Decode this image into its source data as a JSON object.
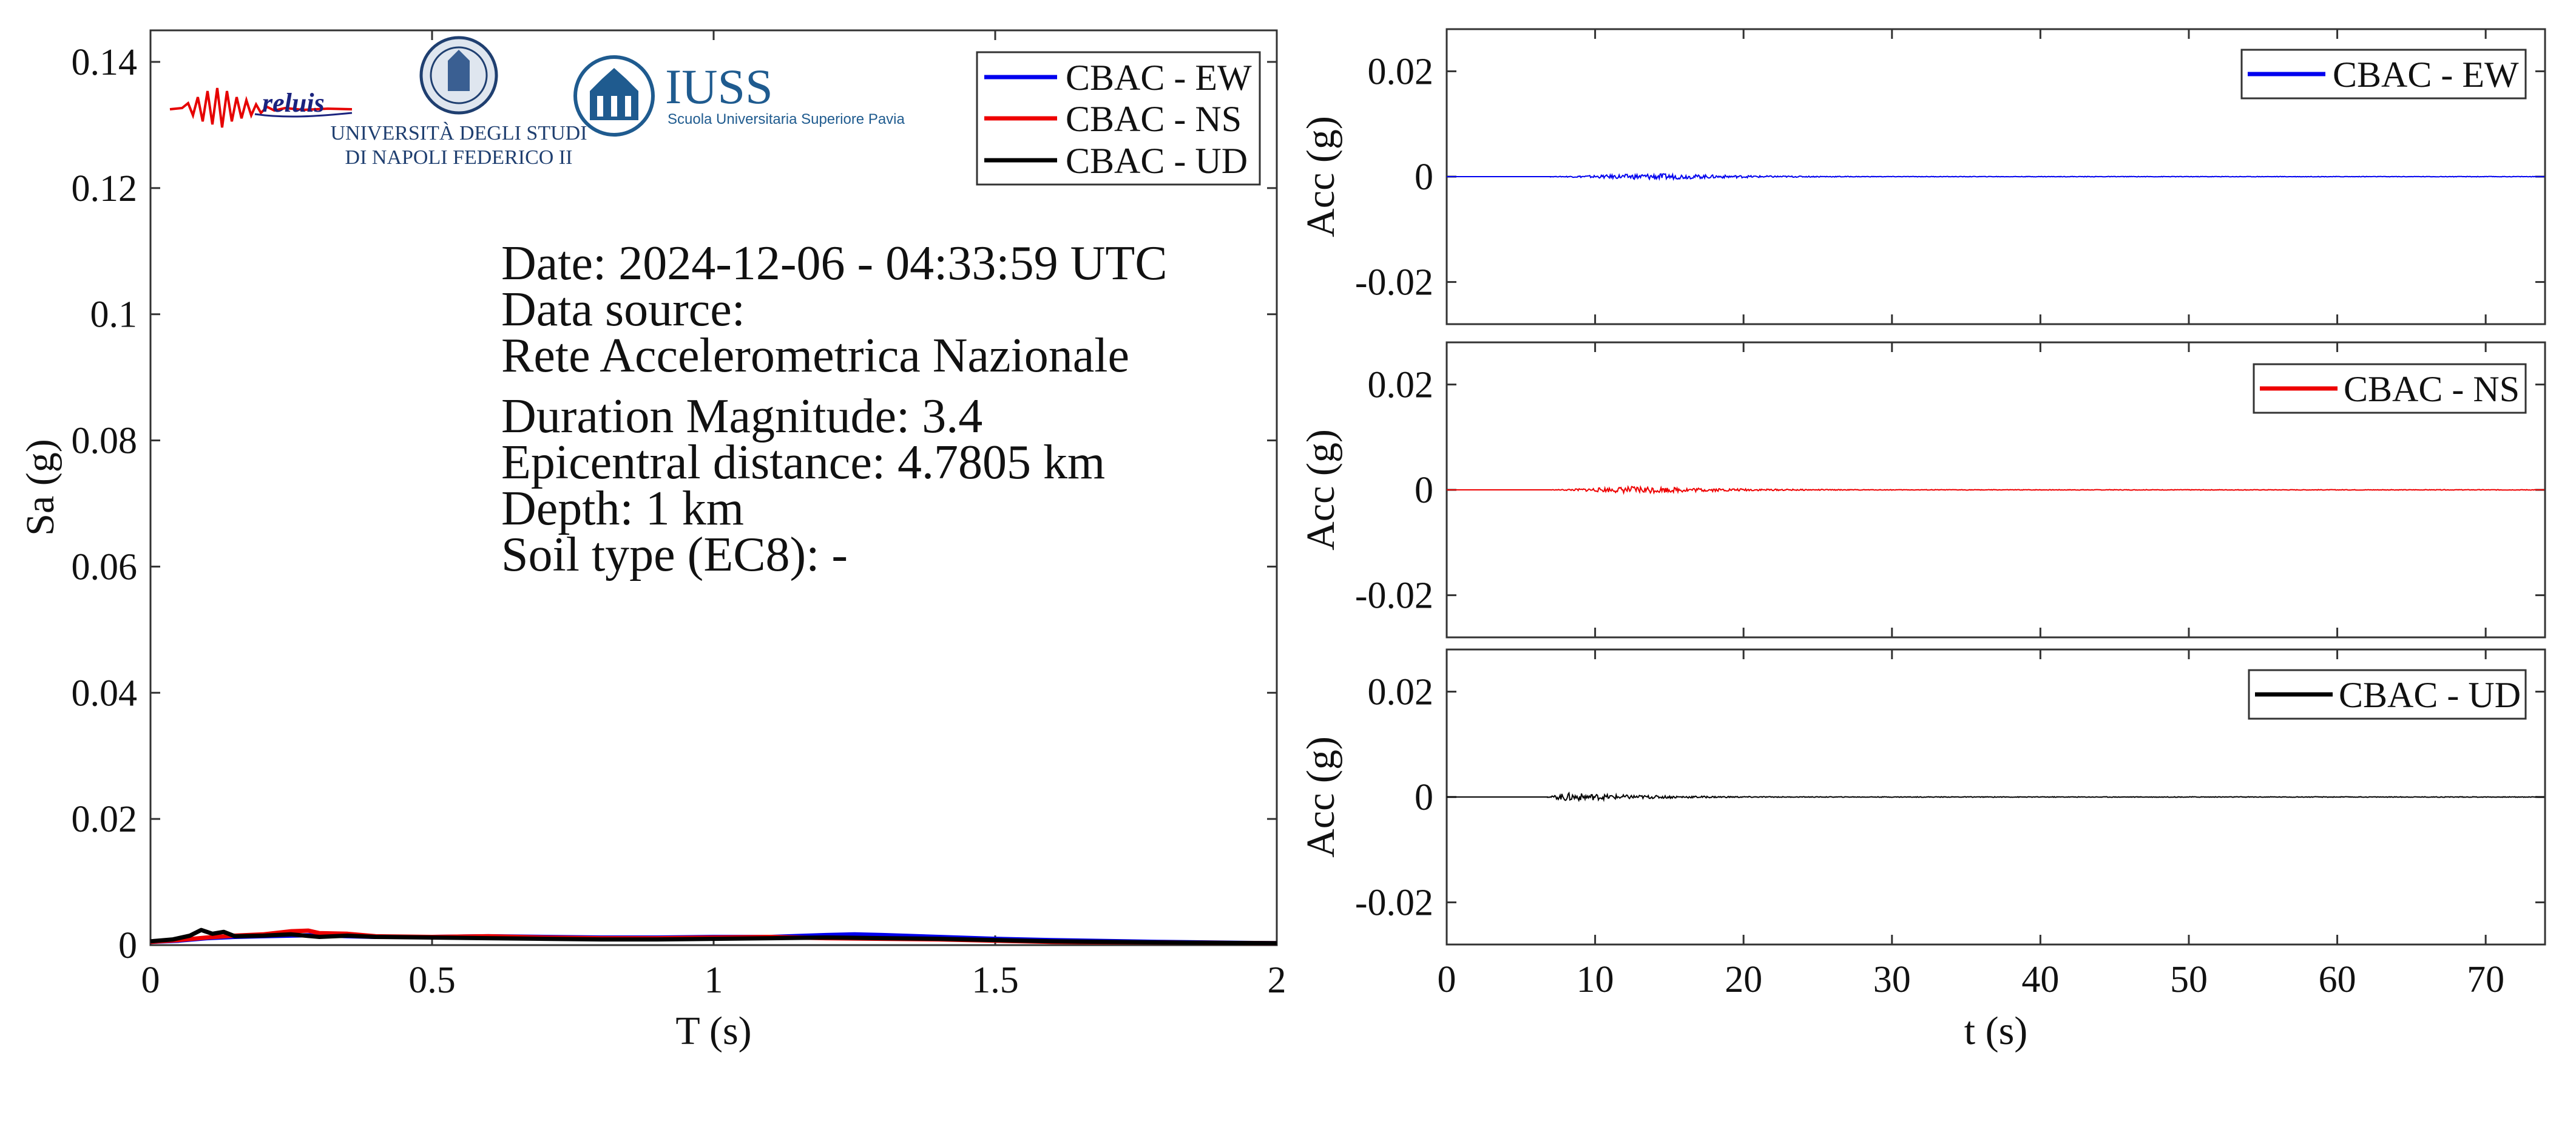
{
  "chart_data": [
    {
      "type": "line",
      "xlabel": "T (s)",
      "ylabel": "Sa (g)",
      "xlim": [
        0,
        2
      ],
      "ylim": [
        0,
        0.145
      ],
      "xticks": [
        0,
        0.5,
        1,
        1.5,
        2
      ],
      "xtick_labels": [
        "0",
        "0.5",
        "1",
        "1.5",
        "2"
      ],
      "yticks": [
        0,
        0.02,
        0.04,
        0.06,
        0.08,
        0.1,
        0.12,
        0.14
      ],
      "ytick_labels": [
        "0",
        "0.02",
        "0.04",
        "0.06",
        "0.08",
        "0.1",
        "0.12",
        "0.14"
      ],
      "legend_position": "top-right",
      "series": [
        {
          "name": "CBAC - EW",
          "color": "#0000ee",
          "x": [
            0,
            0.05,
            0.1,
            0.15,
            0.2,
            0.25,
            0.3,
            0.35,
            0.4,
            0.5,
            0.6,
            0.7,
            0.8,
            0.9,
            1.0,
            1.1,
            1.2,
            1.25,
            1.3,
            1.4,
            1.5,
            1.6,
            1.8,
            2.0
          ],
          "y": [
            0.0005,
            0.0007,
            0.0011,
            0.0013,
            0.0014,
            0.0015,
            0.0016,
            0.0014,
            0.0013,
            0.0013,
            0.0014,
            0.0013,
            0.0012,
            0.0012,
            0.0013,
            0.0013,
            0.0016,
            0.0017,
            0.0016,
            0.0013,
            0.001,
            0.0008,
            0.0005,
            0.0003
          ]
        },
        {
          "name": "CBAC - NS",
          "color": "#ee0000",
          "x": [
            0,
            0.05,
            0.1,
            0.15,
            0.2,
            0.25,
            0.28,
            0.3,
            0.35,
            0.4,
            0.5,
            0.6,
            0.7,
            0.8,
            0.9,
            1.0,
            1.1,
            1.2,
            1.3,
            1.4,
            1.5,
            1.6,
            1.8,
            2.0
          ],
          "y": [
            0.0005,
            0.0008,
            0.0012,
            0.0015,
            0.0017,
            0.0022,
            0.0023,
            0.0019,
            0.0018,
            0.0014,
            0.0013,
            0.0014,
            0.0012,
            0.0011,
            0.0011,
            0.0012,
            0.0013,
            0.0011,
            0.001,
            0.0009,
            0.0007,
            0.0005,
            0.0004,
            0.0003
          ]
        },
        {
          "name": "CBAC - UD",
          "color": "#000000",
          "x": [
            0,
            0.04,
            0.07,
            0.09,
            0.11,
            0.13,
            0.15,
            0.2,
            0.25,
            0.3,
            0.35,
            0.4,
            0.5,
            0.6,
            0.7,
            0.8,
            0.9,
            1.0,
            1.1,
            1.2,
            1.3,
            1.4,
            1.5,
            1.6,
            1.8,
            2.0
          ],
          "y": [
            0.0006,
            0.0009,
            0.0015,
            0.0024,
            0.0018,
            0.0021,
            0.0014,
            0.0015,
            0.0017,
            0.0013,
            0.0015,
            0.0013,
            0.0012,
            0.0011,
            0.001,
            0.0009,
            0.0009,
            0.001,
            0.0011,
            0.0012,
            0.0011,
            0.001,
            0.0008,
            0.0006,
            0.0004,
            0.0003
          ]
        }
      ]
    },
    {
      "type": "line",
      "xlabel": "",
      "ylabel": "Acc (g)",
      "xlim": [
        0,
        74
      ],
      "ylim": [
        -0.028,
        0.028
      ],
      "yticks": [
        -0.02,
        0,
        0.02
      ],
      "ytick_labels": [
        "-0.02",
        "0",
        "0.02"
      ],
      "legend_position": "top-right",
      "series": [
        {
          "name": "CBAC - EW",
          "color": "#0000ee",
          "signal_start": 7,
          "signal_end": 74,
          "peak_time": 14,
          "peak_amplitude": 0.0006
        }
      ]
    },
    {
      "type": "line",
      "xlabel": "",
      "ylabel": "Acc (g)",
      "xlim": [
        0,
        74
      ],
      "ylim": [
        -0.028,
        0.028
      ],
      "yticks": [
        -0.02,
        0,
        0.02
      ],
      "ytick_labels": [
        "-0.02",
        "0",
        "0.02"
      ],
      "legend_position": "top-right",
      "series": [
        {
          "name": "CBAC - NS",
          "color": "#ee0000",
          "signal_start": 7,
          "signal_end": 74,
          "peak_time": 13,
          "peak_amplitude": 0.0007
        }
      ]
    },
    {
      "type": "line",
      "xlabel": "t (s)",
      "ylabel": "Acc (g)",
      "xlim": [
        0,
        74
      ],
      "ylim": [
        -0.028,
        0.028
      ],
      "xticks": [
        0,
        10,
        20,
        30,
        40,
        50,
        60,
        70
      ],
      "xtick_labels": [
        "0",
        "10",
        "20",
        "30",
        "40",
        "50",
        "60",
        "70"
      ],
      "yticks": [
        -0.02,
        0,
        0.02
      ],
      "ytick_labels": [
        "-0.02",
        "0",
        "0.02"
      ],
      "legend_position": "top-right",
      "series": [
        {
          "name": "CBAC - UD",
          "color": "#000000",
          "signal_start": 6.8,
          "signal_end": 74,
          "peak_time": 8,
          "peak_amplitude": 0.0008
        }
      ]
    }
  ],
  "info_box": {
    "date": "Date: 2024-12-06 - 04:33:59 UTC",
    "source_label": "Data source:",
    "source_value": "Rete Accelerometrica Nazionale",
    "magnitude": "Duration Magnitude: 3.4",
    "distance": "Epicentral distance: 4.7805 km",
    "depth": "Depth: 1 km",
    "soil": "Soil type (EC8): -"
  },
  "logos": {
    "reluis": "reluis",
    "unina_line1": "UNIVERSITÀ DEGLI STUDI",
    "unina_line2": "DI NAPOLI FEDERICO II",
    "iuss_title": "IUSS",
    "iuss_subtitle": "Scuola Universitaria Superiore Pavia"
  }
}
